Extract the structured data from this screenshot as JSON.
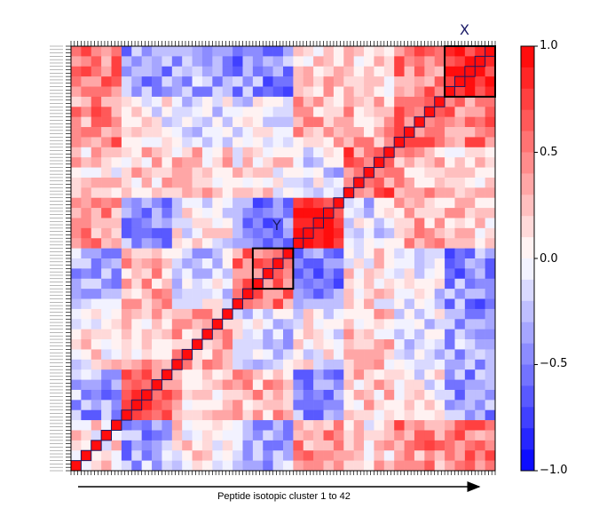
{
  "chart_data": {
    "type": "heatmap",
    "title": "",
    "xlabel": "Peptide isotopic cluster 1 to 42",
    "ylabel": "",
    "n": 42,
    "value_range": [
      -1.0,
      1.0
    ],
    "colormap": "bwr",
    "colormap_levels": 20,
    "colorbar_ticks": [
      {
        "value": 1.0,
        "label": "1.0"
      },
      {
        "value": 0.5,
        "label": "0.5"
      },
      {
        "value": 0.0,
        "label": "0.0"
      },
      {
        "value": -0.5,
        "label": "−0.5"
      },
      {
        "value": -1.0,
        "label": "−1.0"
      }
    ],
    "diagonal_value": 1.0,
    "highlight_boxes": [
      {
        "label": "X",
        "first_cluster": 38,
        "last_cluster": 42
      },
      {
        "label": "Y",
        "first_cluster": 19,
        "last_cluster": 22
      }
    ],
    "block_means": [
      [
        0.15,
        -0.35,
        0.05,
        -0.3,
        0.4,
        0.15,
        0.45,
        0.5
      ],
      [
        -0.35,
        0.6,
        0.25,
        0.3,
        -0.4,
        0.2,
        0.0,
        -0.4
      ],
      [
        0.05,
        0.25,
        0.35,
        -0.15,
        0.0,
        0.2,
        -0.1,
        -0.35
      ],
      [
        -0.3,
        0.3,
        -0.15,
        0.55,
        -0.5,
        0.1,
        -0.1,
        -0.45
      ],
      [
        0.4,
        -0.4,
        0.0,
        -0.5,
        0.8,
        -0.15,
        0.3,
        0.2
      ],
      [
        0.15,
        0.2,
        0.2,
        0.1,
        -0.15,
        0.55,
        0.3,
        0.1
      ],
      [
        0.45,
        0.0,
        -0.1,
        -0.1,
        0.3,
        0.3,
        0.55,
        0.5
      ],
      [
        0.5,
        -0.4,
        -0.35,
        -0.45,
        0.2,
        0.1,
        0.5,
        0.75
      ]
    ],
    "block_group_ranges": [
      [
        1,
        5
      ],
      [
        6,
        10
      ],
      [
        11,
        16
      ],
      [
        17,
        22
      ],
      [
        23,
        27
      ],
      [
        28,
        32
      ],
      [
        33,
        37
      ],
      [
        38,
        42
      ]
    ]
  },
  "colors": {
    "low": "#0000ff",
    "mid": "#ffffff",
    "high": "#ff0000",
    "box_stroke": "#000000",
    "diag_stroke": "#1a1a66"
  }
}
